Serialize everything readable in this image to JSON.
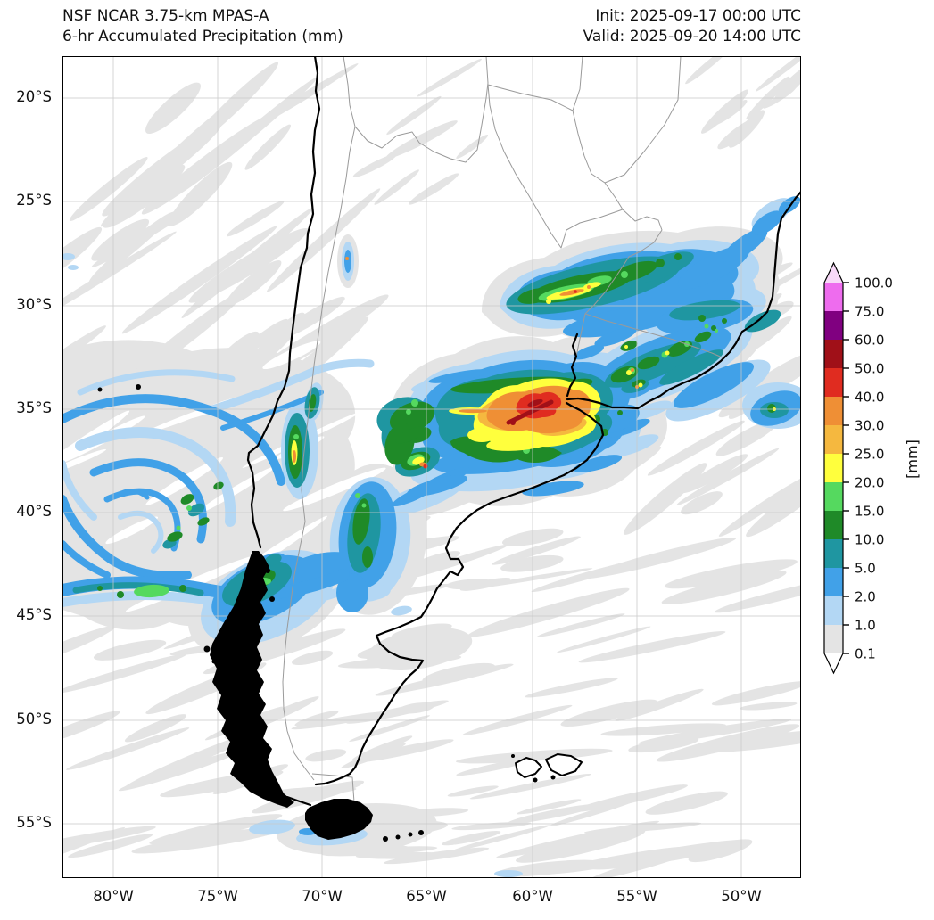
{
  "header": {
    "title_line1": "NSF NCAR 3.75-km MPAS-A",
    "title_line2": "6-hr Accumulated Precipitation (mm)",
    "init_label": "Init: 2025-09-17 00:00 UTC",
    "valid_label": "Valid: 2025-09-20 14:00 UTC"
  },
  "axes": {
    "x_ticks": [
      "80°W",
      "75°W",
      "70°W",
      "65°W",
      "60°W",
      "55°W",
      "50°W"
    ],
    "y_ticks": [
      "20°S",
      "25°S",
      "30°S",
      "35°S",
      "40°S",
      "45°S",
      "50°S",
      "55°S"
    ]
  },
  "colorbar": {
    "unit": "[mm]",
    "levels": [
      "0.1",
      "1.0",
      "2.0",
      "5.0",
      "10.0",
      "15.0",
      "20.0",
      "25.0",
      "30.0",
      "40.0",
      "50.0",
      "60.0",
      "75.0",
      "100.0"
    ],
    "colors": [
      "#e4e4e4",
      "#b3d7f4",
      "#41a1e8",
      "#1f96a1",
      "#1f8a28",
      "#55d95f",
      "#ffff3d",
      "#f5b83f",
      "#ef8f35",
      "#e02c20",
      "#a01018",
      "#800080",
      "#ee6cee"
    ],
    "over_color": "#f8d9f8",
    "under_color": "#ffffff"
  }
}
